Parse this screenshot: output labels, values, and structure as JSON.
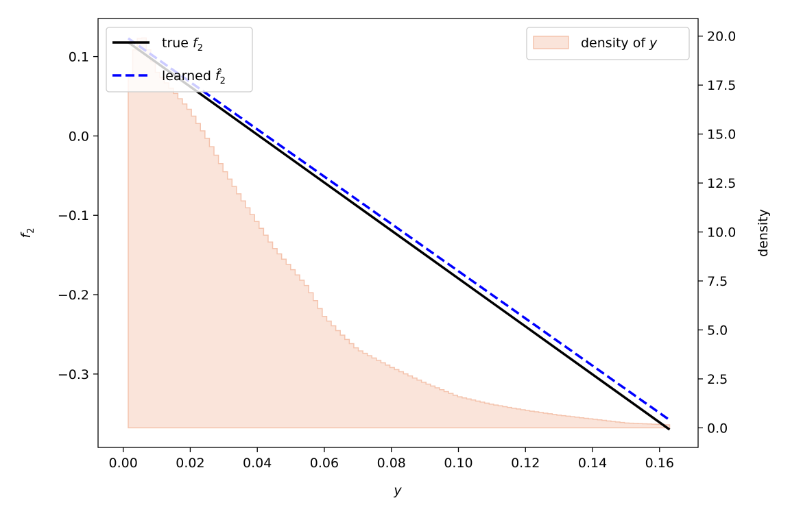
{
  "chart_data": {
    "type": "line",
    "xlabel": "y",
    "ylabel": "f",
    "ylabel_sub": "2",
    "y2label": "density",
    "xlim": [
      -0.0075,
      0.1715
    ],
    "ylim": [
      -0.3925,
      0.148
    ],
    "y2lim": [
      -1.0,
      20.9
    ],
    "xticks": [
      0.0,
      0.02,
      0.04,
      0.06,
      0.08,
      0.1,
      0.12,
      0.14,
      0.16
    ],
    "xtick_labels": [
      "0.00",
      "0.02",
      "0.04",
      "0.06",
      "0.08",
      "0.10",
      "0.12",
      "0.14",
      "0.16"
    ],
    "yticks": [
      0.1,
      0.0,
      -0.1,
      -0.2,
      -0.3
    ],
    "ytick_labels": [
      "0.1",
      "0.0",
      "−0.1",
      "−0.2",
      "−0.3"
    ],
    "y2ticks": [
      0.0,
      2.5,
      5.0,
      7.5,
      10.0,
      12.5,
      15.0,
      17.5,
      20.0
    ],
    "y2tick_labels": [
      "0.0",
      "2.5",
      "5.0",
      "7.5",
      "10.0",
      "12.5",
      "15.0",
      "17.5",
      "20.0"
    ],
    "series": [
      {
        "name": "true",
        "name_math": "f",
        "name_sub": "2",
        "color": "#000000",
        "style": "solid",
        "x": [
          0.0015,
          0.163
        ],
        "y": [
          0.118,
          -0.37
        ]
      },
      {
        "name": "learned",
        "name_math": "f̂",
        "name_sub": "2",
        "color": "#0000ff",
        "style": "dashed",
        "x": [
          0.0015,
          0.163
        ],
        "y": [
          0.123,
          -0.358
        ]
      }
    ],
    "histogram": {
      "name": "density of",
      "name_math": "y",
      "color": "#f4c3ad",
      "bin_start": 0.0015,
      "bin_end": 0.163,
      "bin_count": 120,
      "key_densities": [
        [
          0.0015,
          17.2
        ],
        [
          0.004,
          19.8
        ],
        [
          0.006,
          20.0
        ],
        [
          0.01,
          18.2
        ],
        [
          0.015,
          17.2
        ],
        [
          0.02,
          16.2
        ],
        [
          0.025,
          14.8
        ],
        [
          0.03,
          13.2
        ],
        [
          0.035,
          11.8
        ],
        [
          0.04,
          10.5
        ],
        [
          0.045,
          9.2
        ],
        [
          0.05,
          8.2
        ],
        [
          0.055,
          7.2
        ],
        [
          0.06,
          5.7
        ],
        [
          0.065,
          4.8
        ],
        [
          0.07,
          4.0
        ],
        [
          0.08,
          3.1
        ],
        [
          0.09,
          2.3
        ],
        [
          0.1,
          1.6
        ],
        [
          0.11,
          1.2
        ],
        [
          0.12,
          0.9
        ],
        [
          0.13,
          0.65
        ],
        [
          0.14,
          0.45
        ],
        [
          0.15,
          0.25
        ],
        [
          0.163,
          0.15
        ]
      ]
    },
    "legend_left": "upper left",
    "legend_right": "upper right",
    "grid": false
  }
}
